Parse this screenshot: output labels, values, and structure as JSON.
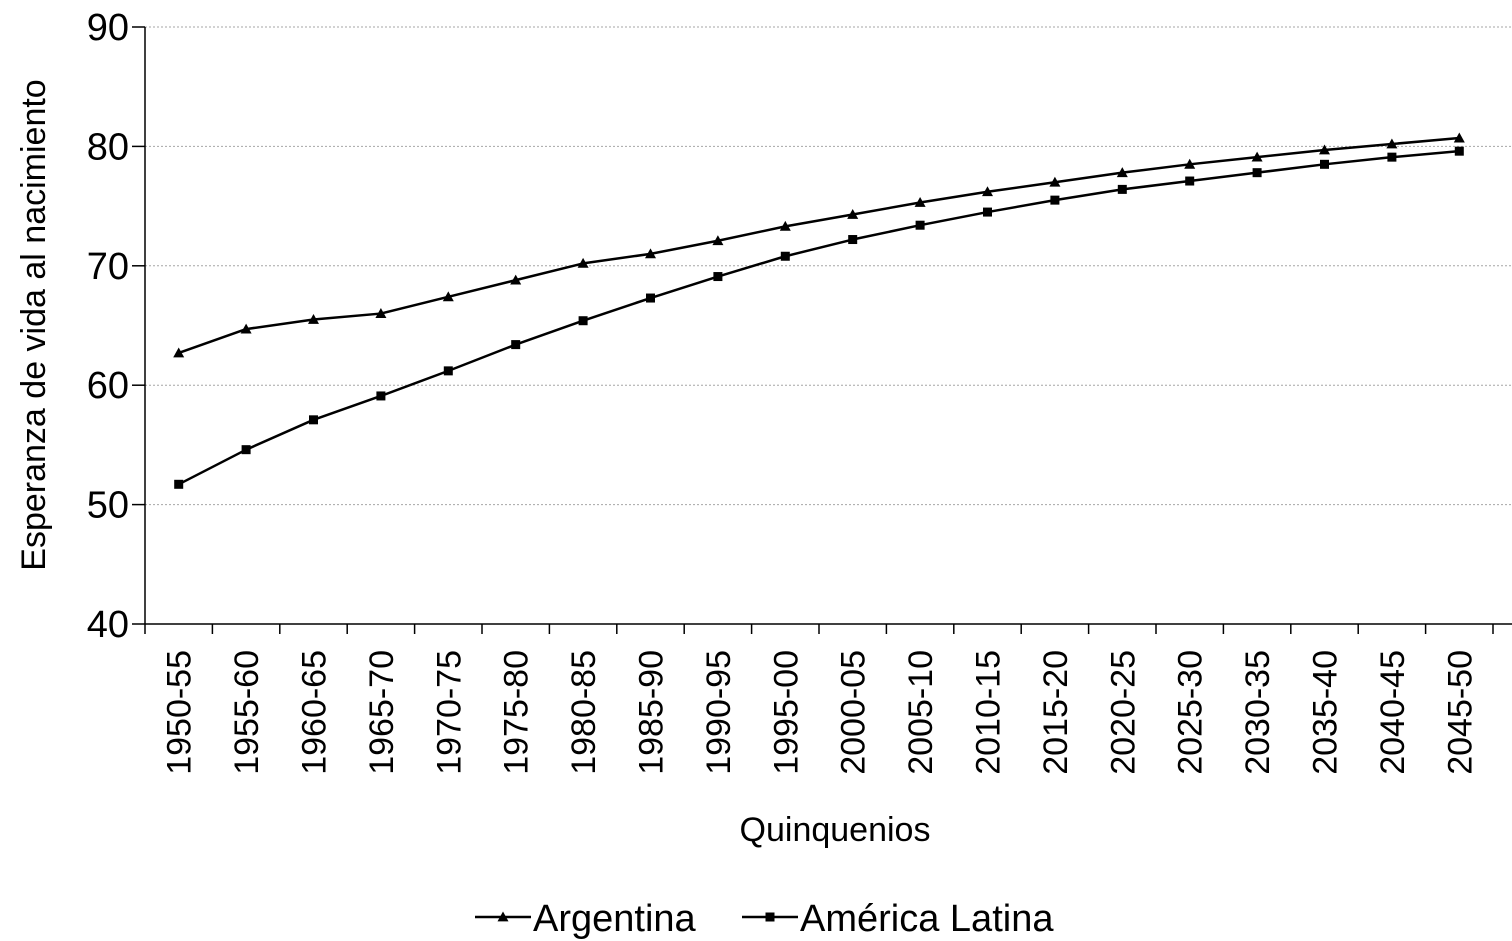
{
  "chart_data": {
    "type": "line",
    "title": "",
    "xlabel": "Quinquenios",
    "ylabel": "Esperanza de vida al nacimiento",
    "ylim": [
      40,
      90
    ],
    "yticks": [
      40,
      50,
      60,
      70,
      80,
      90
    ],
    "grid": true,
    "legend_position": "bottom",
    "categories": [
      "1950-55",
      "1955-60",
      "1960-65",
      "1965-70",
      "1970-75",
      "1975-80",
      "1980-85",
      "1985-90",
      "1990-95",
      "1995-00",
      "2000-05",
      "2005-10",
      "2010-15",
      "2015-20",
      "2020-25",
      "2025-30",
      "2030-35",
      "2035-40",
      "2040-45",
      "2045-50"
    ],
    "series": [
      {
        "name": "Argentina",
        "marker": "triangle",
        "color": "#000000",
        "values": [
          62.7,
          64.7,
          65.5,
          66.0,
          67.4,
          68.8,
          70.2,
          71.0,
          72.1,
          73.3,
          74.3,
          75.3,
          76.2,
          77.0,
          77.8,
          78.5,
          79.1,
          79.7,
          80.2,
          80.7
        ]
      },
      {
        "name": "América Latina",
        "marker": "square",
        "color": "#000000",
        "values": [
          51.7,
          54.6,
          57.1,
          59.1,
          61.2,
          63.4,
          65.4,
          67.3,
          69.1,
          70.8,
          72.2,
          73.4,
          74.5,
          75.5,
          76.4,
          77.1,
          77.8,
          78.5,
          79.1,
          79.6
        ]
      }
    ]
  }
}
